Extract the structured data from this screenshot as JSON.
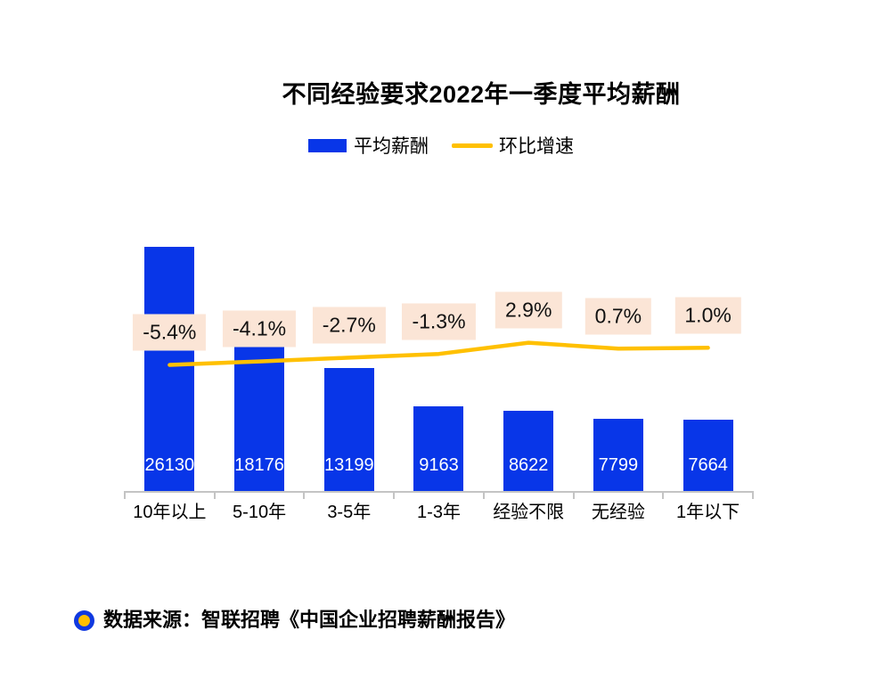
{
  "chart_data": {
    "type": "bar",
    "title": "不同经验要求2022年一季度平均薪酬",
    "categories": [
      "10年以上",
      "5-10年",
      "3-5年",
      "1-3年",
      "经验不限",
      "无经验",
      "1年以下"
    ],
    "series": [
      {
        "name": "平均薪酬",
        "type": "bar",
        "values": [
          26130,
          18176,
          13199,
          9163,
          8622,
          7799,
          7664
        ],
        "color": "#0836E8",
        "value_label_color": "#FFFFFF"
      },
      {
        "name": "环比增速",
        "type": "line",
        "values": [
          -5.4,
          -4.1,
          -2.7,
          -1.3,
          2.9,
          0.7,
          1.0
        ],
        "labels": [
          "-5.4%",
          "-4.1%",
          "-2.7%",
          "-1.3%",
          "2.9%",
          "0.7%",
          "1.0%"
        ],
        "color": "#FFC000",
        "label_bg": "#FBE5D6"
      }
    ],
    "legend_position": "top",
    "grid": false,
    "bar_value_labels_inside": true,
    "bar_axis_range": [
      0,
      26130
    ]
  },
  "source": {
    "text": "数据来源：智联招聘《中国企业招聘薪酬报告》",
    "bullet_outer_color": "#1039E0",
    "bullet_inner_color": "#FFC000"
  },
  "colors": {
    "axis": "#C4C4C4",
    "text": "#000000",
    "background": "#FFFFFF"
  }
}
